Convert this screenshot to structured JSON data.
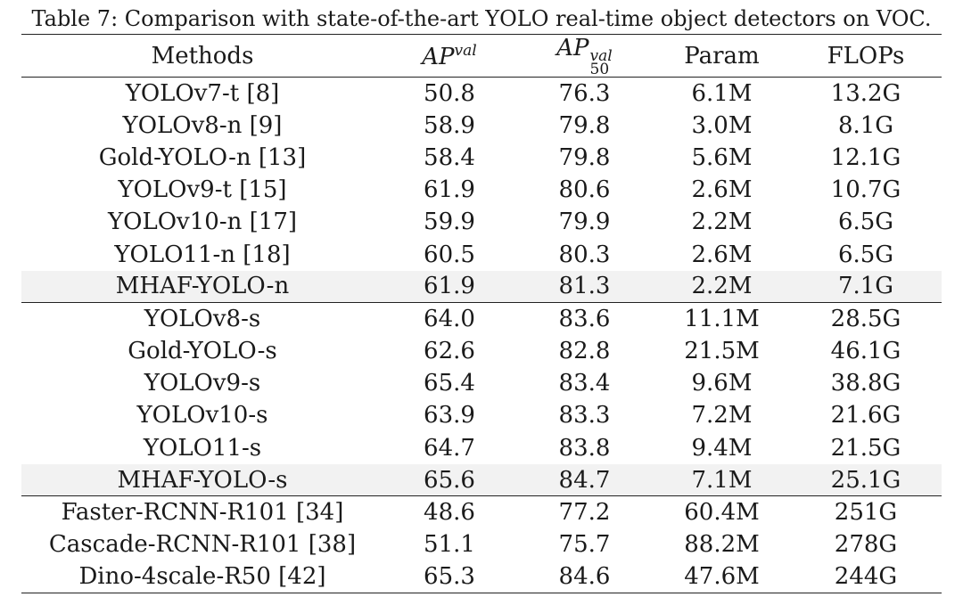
{
  "caption": "Table 7: Comparison with state-of-the-art YOLO real-time object detectors on VOC.",
  "headers": {
    "methods": "Methods",
    "ap_val_base": "AP",
    "ap_val_sup": "val",
    "ap50_base": "AP",
    "ap50_sup": "val",
    "ap50_sub": "50",
    "param": "Param",
    "flops": "FLOPs"
  },
  "groups": [
    {
      "rows": [
        {
          "method": "YOLOv7-t [8]",
          "ap": "50.8",
          "ap50": "76.3",
          "param": "6.1M",
          "flops": "13.2G"
        },
        {
          "method": "YOLOv8-n [9]",
          "ap": "58.9",
          "ap50": "79.8",
          "param": "3.0M",
          "flops": "8.1G"
        },
        {
          "method": "Gold-YOLO-n [13]",
          "ap": "58.4",
          "ap50": "79.8",
          "param": "5.6M",
          "flops": "12.1G"
        },
        {
          "method": "YOLOv9-t [15]",
          "ap": "61.9",
          "ap50": "80.6",
          "param": "2.6M",
          "flops": "10.7G"
        },
        {
          "method": "YOLOv10-n [17]",
          "ap": "59.9",
          "ap50": "79.9",
          "param": "2.2M",
          "flops": "6.5G"
        },
        {
          "method": "YOLO11-n [18]",
          "ap": "60.5",
          "ap50": "80.3",
          "param": "2.6M",
          "flops": "6.5G"
        },
        {
          "method": "MHAF-YOLO-n",
          "ap": "61.9",
          "ap50": "81.3",
          "param": "2.2M",
          "flops": "7.1G",
          "highlight": true
        }
      ]
    },
    {
      "rows": [
        {
          "method": "YOLOv8-s",
          "ap": "64.0",
          "ap50": "83.6",
          "param": "11.1M",
          "flops": "28.5G"
        },
        {
          "method": "Gold-YOLO-s",
          "ap": "62.6",
          "ap50": "82.8",
          "param": "21.5M",
          "flops": "46.1G"
        },
        {
          "method": "YOLOv9-s",
          "ap": "65.4",
          "ap50": "83.4",
          "param": "9.6M",
          "flops": "38.8G"
        },
        {
          "method": "YOLOv10-s",
          "ap": "63.9",
          "ap50": "83.3",
          "param": "7.2M",
          "flops": "21.6G"
        },
        {
          "method": "YOLO11-s",
          "ap": "64.7",
          "ap50": "83.8",
          "param": "9.4M",
          "flops": "21.5G"
        },
        {
          "method": "MHAF-YOLO-s",
          "ap": "65.6",
          "ap50": "84.7",
          "param": "7.1M",
          "flops": "25.1G",
          "highlight": true
        }
      ]
    },
    {
      "rows": [
        {
          "method": "Faster-RCNN-R101 [34]",
          "ap": "48.6",
          "ap50": "77.2",
          "param": "60.4M",
          "flops": "251G"
        },
        {
          "method": "Cascade-RCNN-R101 [38]",
          "ap": "51.1",
          "ap50": "75.7",
          "param": "88.2M",
          "flops": "278G"
        },
        {
          "method": "Dino-4scale-R50 [42]",
          "ap": "65.3",
          "ap50": "84.6",
          "param": "47.6M",
          "flops": "244G"
        }
      ]
    }
  ]
}
